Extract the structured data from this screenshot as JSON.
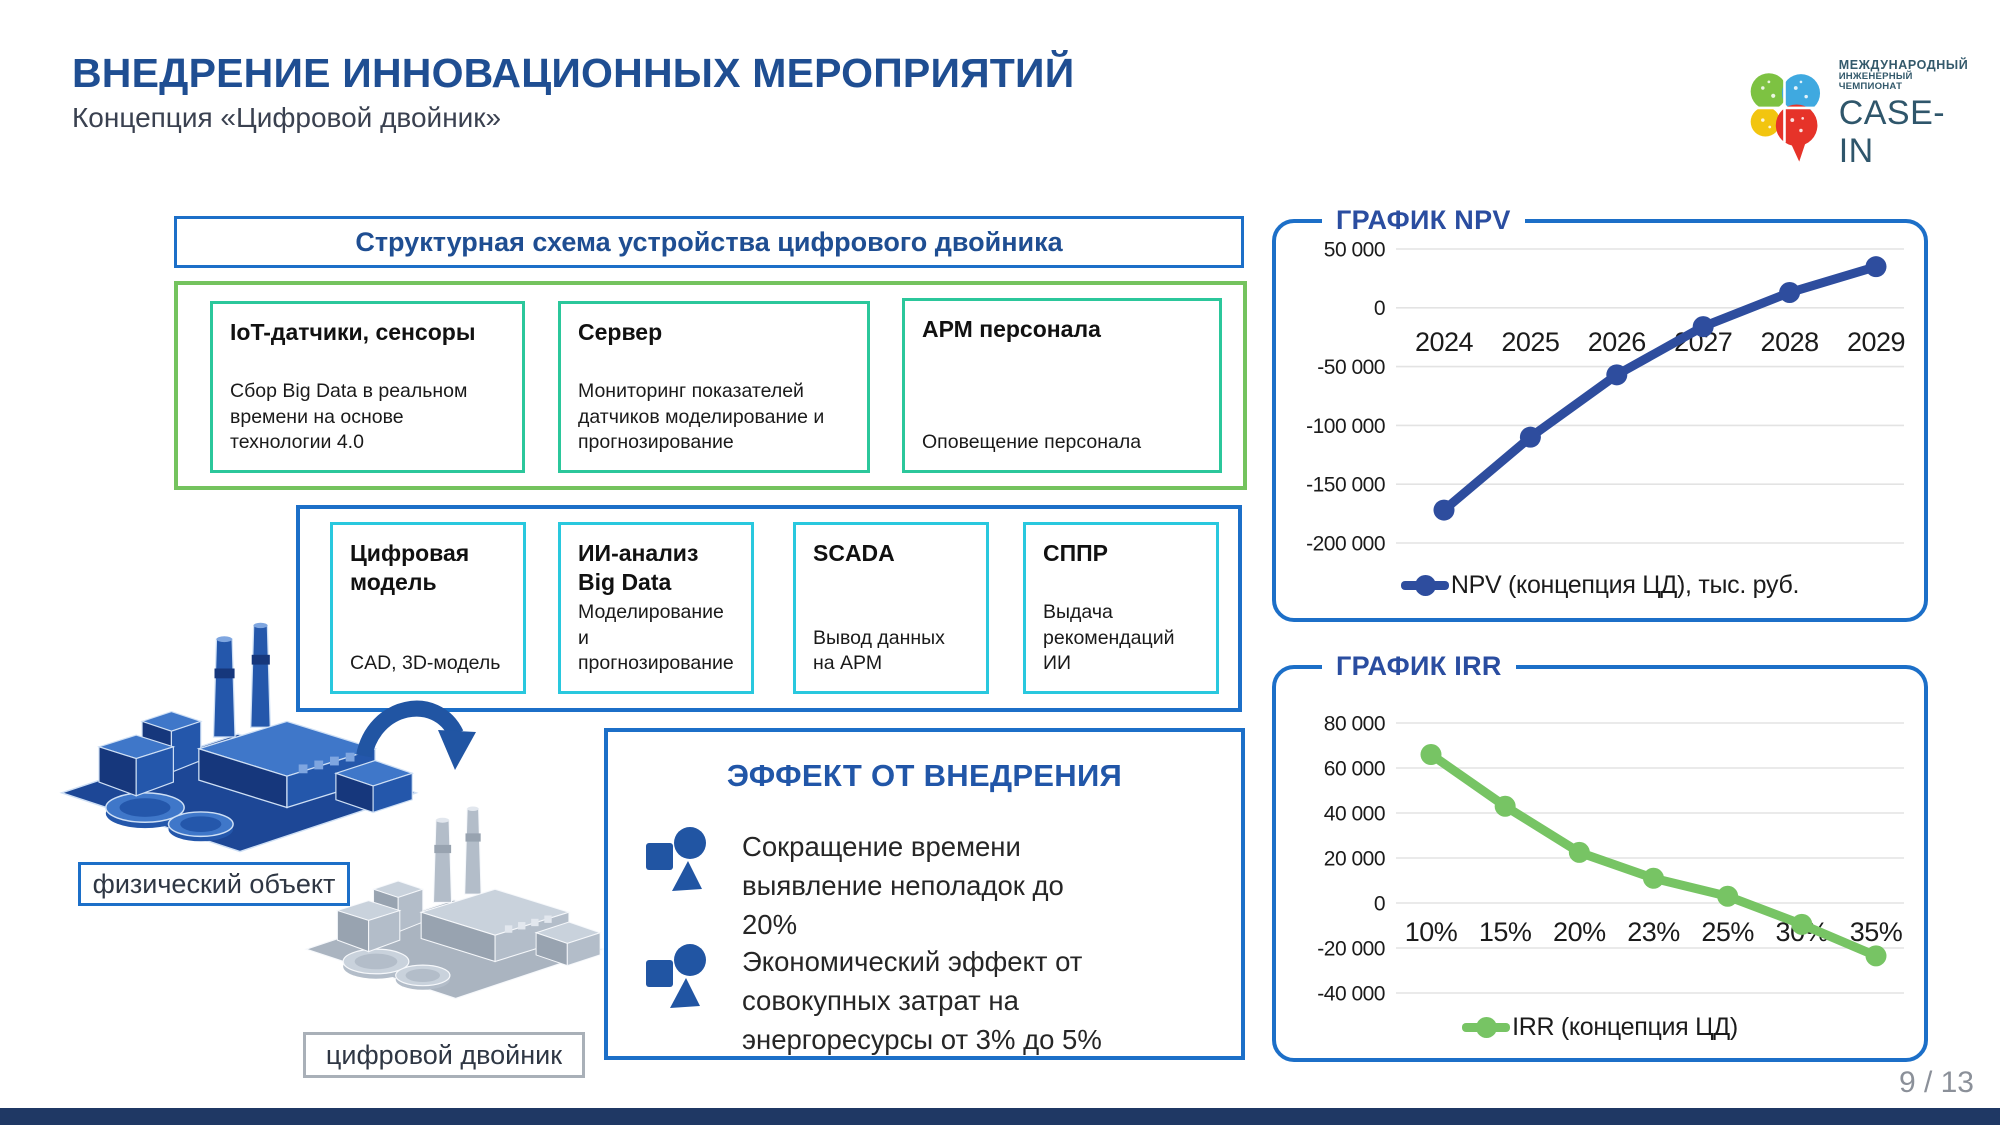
{
  "slide": {
    "title": "ВНЕДРЕНИЕ ИННОВАЦИОННЫХ МЕРОПРИЯТИЙ",
    "subtitle": "Концепция «Цифровой двойник»",
    "page": "9 / 13"
  },
  "logo": {
    "line1": "МЕЖДУНАРОДНЫЙ",
    "line2": "ИНЖЕНЕРНЫЙ ЧЕМПИОНАТ",
    "line3": "CASE-IN"
  },
  "scheme": {
    "header": "Структурная схема устройства цифрового двойника",
    "row1": [
      {
        "title": "IoT-датчики, сенсоры",
        "body": "Сбор Big Data в реальном времени на основе технологии 4.0"
      },
      {
        "title": "Сервер",
        "body": "Мониторинг показателей датчиков моделирование и прогнозирование"
      },
      {
        "title": "АРМ персонала",
        "body": "Оповещение персонала"
      }
    ],
    "row2": [
      {
        "title": "Цифровая модель",
        "body": "CAD, 3D-модель"
      },
      {
        "title": "ИИ-анализ Big Data",
        "body": "Моделирование и прогнозирование"
      },
      {
        "title": "SCADA",
        "body": "Вывод данных на АРМ"
      },
      {
        "title": "СППР",
        "body": "Выдача рекомендаций ИИ"
      }
    ]
  },
  "twin": {
    "physical_label": "физический объект",
    "digital_label": "цифровой двойник"
  },
  "effect": {
    "title": "ЭФФЕКТ ОТ ВНЕДРЕНИЯ",
    "items": [
      "Сокращение времени выявление неполадок до 20%",
      "Экономический эффект от совокупных затрат на энергоресурсы от 3% до 5%"
    ]
  },
  "chart_data": [
    {
      "type": "line",
      "title": "ГРАФИК NPV",
      "categories": [
        "2024",
        "2025",
        "2026",
        "2027",
        "2028",
        "2029"
      ],
      "series": [
        {
          "name": "NPV (концепция ЦД), тыс. руб.",
          "values": [
            -172000,
            -110000,
            -57000,
            -16000,
            13000,
            35000
          ]
        }
      ],
      "ylim": [
        -200000,
        50000
      ],
      "yticks": [
        "50 000",
        "0",
        "-50 000",
        "-100 000",
        "-150 000",
        "-200 000"
      ],
      "grid": true,
      "legend_position": "bottom",
      "line_color": "#2E4D9E"
    },
    {
      "type": "line",
      "title": "ГРАФИК IRR",
      "categories": [
        "10%",
        "15%",
        "20%",
        "23%",
        "25%",
        "30%",
        "35%"
      ],
      "series": [
        {
          "name": "IRR (концепция ЦД)",
          "values": [
            66000,
            43000,
            22500,
            11000,
            3000,
            -9500,
            -23500
          ]
        }
      ],
      "ylim": [
        -40000,
        80000
      ],
      "yticks": [
        "80 000",
        "60 000",
        "40 000",
        "20 000",
        "0",
        "-20 000",
        "-40 000"
      ],
      "grid": true,
      "legend_position": "bottom",
      "line_color": "#77C464"
    }
  ],
  "colors": {
    "title_blue": "#1F4E92",
    "panel_border_blue": "#1C6FC8",
    "green_border": "#74C35E",
    "teal_border": "#2BC79B",
    "cyan_border": "#29C8DE",
    "npv_line": "#2E4D9E",
    "irr_line": "#77C464",
    "footer_navy": "#1F3864",
    "bullet_icon_blue": "#2155A3",
    "logo_green": "#7DC242",
    "logo_blue": "#3FA9E0",
    "logo_yellow": "#F2C50F",
    "logo_red": "#E63329"
  }
}
